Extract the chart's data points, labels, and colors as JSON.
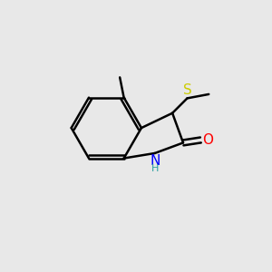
{
  "background_color": "#e8e8e8",
  "bond_color": "#000000",
  "bond_width": 1.8,
  "atom_colors": {
    "N": "#0000ff",
    "O": "#ff0000",
    "S": "#cccc00",
    "C": "#000000",
    "H": "#000000"
  },
  "font_size_atoms": 11,
  "font_size_small": 9
}
